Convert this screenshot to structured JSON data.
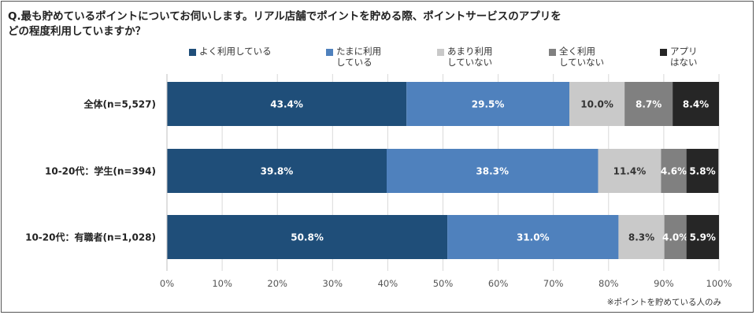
{
  "title_lines": [
    "Q.最も貯めているポイントについてお伺いします。リアル店舗でポイントを貯める際、ポイントサービスのアプリを",
    "どの程度利用していますか？"
  ],
  "note": "※ポイントを貯めている人のみ",
  "colors": {
    "often": "#1f4e79",
    "sometimes": "#4f81bd",
    "rarely": "#c9c9c9",
    "never": "#808080",
    "no_app": "#262626"
  },
  "chart_data": {
    "type": "bar",
    "orientation": "horizontal",
    "stacked": true,
    "percent": true,
    "categories": [
      "全体(n=5,527)",
      "10-20代：学生(n=394)",
      "10-20代：有職者(n=1,028)"
    ],
    "series": [
      {
        "name": "よく利用している",
        "key": "often",
        "values": [
          43.4,
          39.8,
          50.8
        ],
        "labels": [
          "43.4%",
          "39.8%",
          "50.8%"
        ]
      },
      {
        "name": "たまに利用\nしている",
        "key": "sometimes",
        "values": [
          29.5,
          38.3,
          31.0
        ],
        "labels": [
          "29.5%",
          "38.3%",
          "31.0%"
        ]
      },
      {
        "name": "あまり利用\nしていない",
        "key": "rarely",
        "values": [
          10.0,
          11.4,
          8.3
        ],
        "labels": [
          "10.0%",
          "11.4%",
          "8.3%"
        ]
      },
      {
        "name": "全く利用\nしていない",
        "key": "never",
        "values": [
          8.7,
          4.6,
          4.0
        ],
        "labels": [
          "8.7%",
          "4.6%",
          "4.0%"
        ]
      },
      {
        "name": "アプリ\nはない",
        "key": "no_app",
        "values": [
          8.4,
          5.8,
          5.9
        ],
        "labels": [
          "8.4%",
          "5.8%",
          "5.9%"
        ]
      }
    ],
    "xlim": [
      0,
      100
    ],
    "x_ticks": [
      "0%",
      "10%",
      "20%",
      "30%",
      "40%",
      "50%",
      "60%",
      "70%",
      "80%",
      "90%",
      "100%"
    ],
    "legend_position": "top",
    "grid": true
  }
}
